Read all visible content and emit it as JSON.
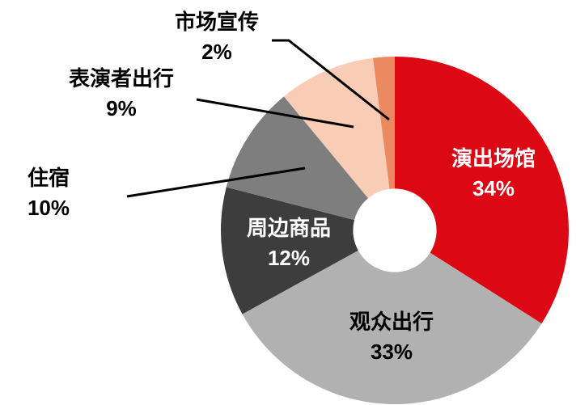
{
  "chart_data": {
    "type": "pie",
    "subtype": "donut",
    "title": "",
    "legend": "none",
    "background_color": "#FFFFFF",
    "leader_line_color": "#000000",
    "inner_radius_ratio": 0.24,
    "start_angle_deg": 0,
    "direction": "clockwise",
    "categories": [
      "演出场馆",
      "观众出行",
      "周边商品",
      "住宿",
      "表演者出行",
      "市场宣传"
    ],
    "values": [
      34,
      33,
      12,
      10,
      9,
      2
    ],
    "segments": [
      {
        "label": "演出场馆",
        "value": 34,
        "pct_label": "34%",
        "color": "#DC0814",
        "label_color": "#FFFFFF",
        "label_position": "inside"
      },
      {
        "label": "观众出行",
        "value": 33,
        "pct_label": "33%",
        "color": "#B1B1B1",
        "label_color": "#000000",
        "label_position": "inside"
      },
      {
        "label": "周边商品",
        "value": 12,
        "pct_label": "12%",
        "color": "#3D3D3D",
        "label_color": "#FFFFFF",
        "label_position": "inside"
      },
      {
        "label": "住宿",
        "value": 10,
        "pct_label": "10%",
        "color": "#7E7E7E",
        "label_color": "#000000",
        "label_position": "outside"
      },
      {
        "label": "表演者出行",
        "value": 9,
        "pct_label": "9%",
        "color": "#F8CCB5",
        "label_color": "#000000",
        "label_position": "outside"
      },
      {
        "label": "市场宣传",
        "value": 2,
        "pct_label": "2%",
        "color": "#EC8960",
        "label_color": "#000000",
        "label_position": "outside"
      }
    ]
  }
}
